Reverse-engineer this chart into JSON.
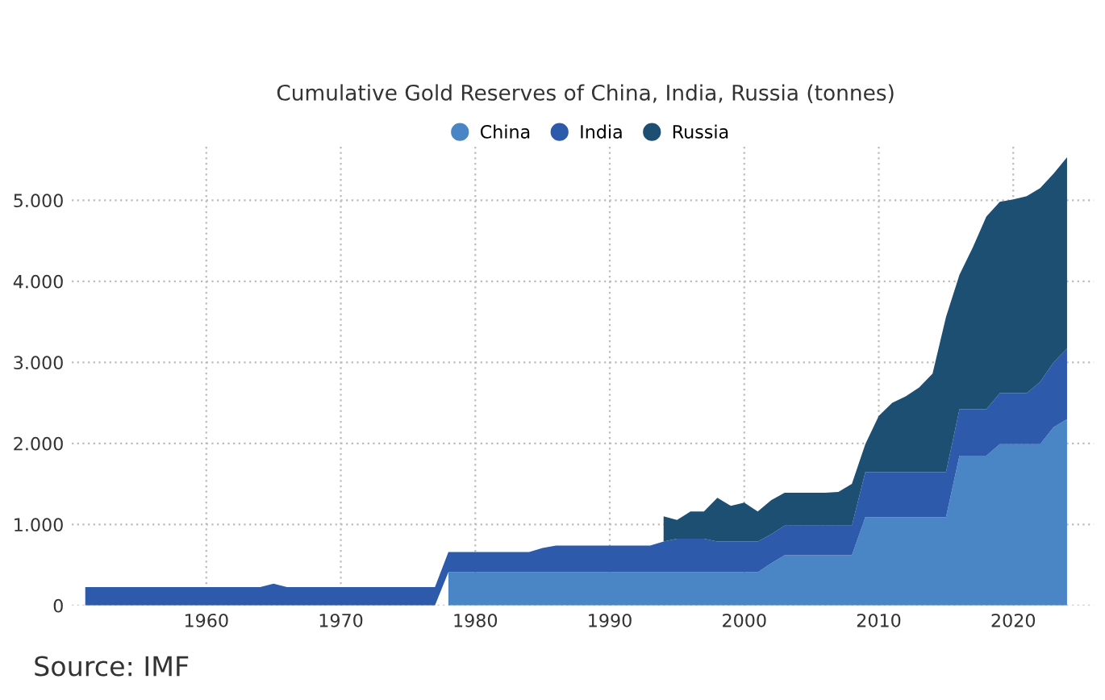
{
  "chart_data": {
    "type": "area",
    "stacked": true,
    "title": "Cumulative Gold Reserves of China, India, Russia (tonnes)",
    "x": [
      1951,
      1952,
      1953,
      1954,
      1955,
      1956,
      1957,
      1958,
      1959,
      1960,
      1961,
      1962,
      1963,
      1964,
      1965,
      1966,
      1967,
      1968,
      1969,
      1970,
      1971,
      1972,
      1973,
      1974,
      1975,
      1976,
      1977,
      1978,
      1979,
      1980,
      1981,
      1982,
      1983,
      1984,
      1985,
      1986,
      1987,
      1988,
      1989,
      1990,
      1991,
      1992,
      1993,
      1994,
      1995,
      1996,
      1997,
      1998,
      1999,
      2000,
      2001,
      2002,
      2003,
      2004,
      2005,
      2006,
      2007,
      2008,
      2009,
      2010,
      2011,
      2012,
      2013,
      2014,
      2015,
      2016,
      2017,
      2018,
      2019,
      2020,
      2021,
      2022,
      2023,
      2024
    ],
    "series": [
      {
        "name": "China",
        "color": "#4a86c5",
        "values": [
          null,
          null,
          null,
          null,
          null,
          null,
          null,
          null,
          null,
          null,
          null,
          null,
          null,
          null,
          null,
          null,
          null,
          null,
          null,
          null,
          null,
          null,
          null,
          null,
          null,
          null,
          null,
          410,
          410,
          410,
          410,
          410,
          410,
          410,
          410,
          410,
          410,
          410,
          410,
          410,
          410,
          410,
          410,
          410,
          410,
          410,
          410,
          410,
          410,
          410,
          410,
          520,
          620,
          620,
          620,
          620,
          620,
          620,
          1090,
          1090,
          1090,
          1090,
          1090,
          1090,
          1090,
          1850,
          1850,
          1850,
          1990,
          1990,
          1990,
          1990,
          2200,
          2300
        ]
      },
      {
        "name": "India",
        "color": "#2e5aac",
        "values": [
          226,
          226,
          226,
          226,
          226,
          226,
          226,
          226,
          226,
          226,
          226,
          226,
          226,
          226,
          270,
          226,
          226,
          226,
          226,
          226,
          226,
          226,
          226,
          226,
          226,
          226,
          226,
          250,
          250,
          250,
          250,
          250,
          250,
          250,
          300,
          330,
          330,
          330,
          330,
          330,
          330,
          330,
          330,
          380,
          415,
          415,
          415,
          380,
          380,
          380,
          380,
          360,
          365,
          365,
          365,
          365,
          365,
          365,
          555,
          555,
          555,
          555,
          555,
          555,
          555,
          570,
          570,
          570,
          630,
          630,
          630,
          770,
          800,
          870
        ]
      },
      {
        "name": "Russia",
        "color": "#1d4f73",
        "values": [
          null,
          null,
          null,
          null,
          null,
          null,
          null,
          null,
          null,
          null,
          null,
          null,
          null,
          null,
          null,
          null,
          null,
          null,
          null,
          null,
          null,
          null,
          null,
          null,
          null,
          null,
          null,
          null,
          null,
          null,
          null,
          null,
          null,
          null,
          null,
          null,
          null,
          null,
          null,
          null,
          null,
          null,
          null,
          310,
          230,
          335,
          335,
          540,
          440,
          480,
          370,
          420,
          405,
          405,
          405,
          405,
          415,
          515,
          345,
          695,
          855,
          935,
          1045,
          1215,
          1915,
          1660,
          2000,
          2380,
          2360,
          2390,
          2430,
          2390,
          2330,
          2360
        ]
      }
    ],
    "xlim": [
      1950,
      2026
    ],
    "xticks": [
      1960,
      1970,
      1980,
      1990,
      2000,
      2010,
      2020
    ],
    "ylim": [
      0,
      5700
    ],
    "yticks": [
      0,
      {
        "value": 1000,
        "label": "1.000"
      },
      {
        "value": 2000,
        "label": "2.000"
      },
      {
        "value": 3000,
        "label": "3.000"
      },
      {
        "value": 4000,
        "label": "4.000"
      },
      {
        "value": 5000,
        "label": "5.000"
      }
    ],
    "grid": true,
    "legend": "top",
    "annotations": [
      "Source: IMF"
    ]
  }
}
